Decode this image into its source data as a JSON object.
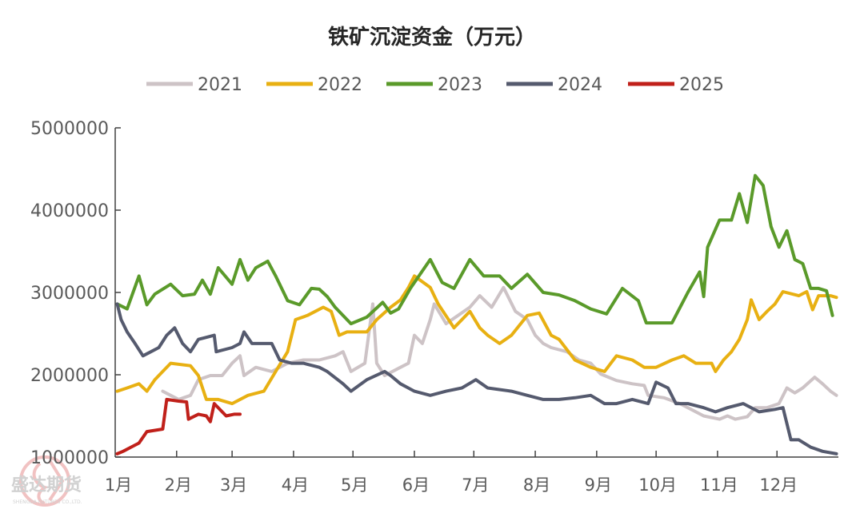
{
  "chart_data": {
    "type": "line",
    "title": "铁矿沉淀资金（万元）",
    "xlabel": "",
    "ylabel": "",
    "ylim": [
      1000000,
      5000000
    ],
    "yticks": [
      "1000000",
      "2000000",
      "3000000",
      "4000000",
      "5000000"
    ],
    "xticks": [
      "1月",
      "2月",
      "3月",
      "4月",
      "5月",
      "6月",
      "7月",
      "8月",
      "9月",
      "10月",
      "11月",
      "12月"
    ],
    "grid": false,
    "legend_position": "top",
    "series": [
      {
        "name": "2021",
        "color": "#cdc3c6",
        "points": [
          [
            "01-25",
            1800000
          ],
          [
            "01-29",
            1750000
          ],
          [
            "02-02",
            1700000
          ],
          [
            "02-08",
            1750000
          ],
          [
            "02-12",
            1940000
          ],
          [
            "02-18",
            1990000
          ],
          [
            "02-24",
            1990000
          ],
          [
            "03-01",
            2140000
          ],
          [
            "03-05",
            2230000
          ],
          [
            "03-07",
            1990000
          ],
          [
            "03-13",
            2090000
          ],
          [
            "03-21",
            2040000
          ],
          [
            "03-29",
            2140000
          ],
          [
            "04-06",
            2180000
          ],
          [
            "04-14",
            2180000
          ],
          [
            "04-22",
            2230000
          ],
          [
            "04-26",
            2280000
          ],
          [
            "04-30",
            2040000
          ],
          [
            "05-07",
            2140000
          ],
          [
            "05-11",
            2860000
          ],
          [
            "05-13",
            2140000
          ],
          [
            "05-17",
            1990000
          ],
          [
            "05-25",
            2090000
          ],
          [
            "05-29",
            2140000
          ],
          [
            "06-01",
            2480000
          ],
          [
            "06-05",
            2380000
          ],
          [
            "06-09",
            2670000
          ],
          [
            "06-11",
            2860000
          ],
          [
            "06-17",
            2620000
          ],
          [
            "06-23",
            2720000
          ],
          [
            "06-29",
            2820000
          ],
          [
            "07-04",
            2960000
          ],
          [
            "07-10",
            2820000
          ],
          [
            "07-16",
            3060000
          ],
          [
            "07-22",
            2770000
          ],
          [
            "07-28",
            2670000
          ],
          [
            "08-01",
            2480000
          ],
          [
            "08-05",
            2380000
          ],
          [
            "08-09",
            2330000
          ],
          [
            "08-17",
            2280000
          ],
          [
            "08-23",
            2180000
          ],
          [
            "08-29",
            2140000
          ],
          [
            "09-03",
            2010000
          ],
          [
            "09-11",
            1930000
          ],
          [
            "09-19",
            1890000
          ],
          [
            "09-25",
            1870000
          ],
          [
            "09-27",
            1750000
          ],
          [
            "10-05",
            1720000
          ],
          [
            "10-13",
            1650000
          ],
          [
            "10-17",
            1600000
          ],
          [
            "10-25",
            1500000
          ],
          [
            "11-02",
            1460000
          ],
          [
            "11-06",
            1500000
          ],
          [
            "11-10",
            1460000
          ],
          [
            "11-16",
            1490000
          ],
          [
            "11-20",
            1600000
          ],
          [
            "11-26",
            1600000
          ],
          [
            "12-02",
            1650000
          ],
          [
            "12-06",
            1840000
          ],
          [
            "12-10",
            1780000
          ],
          [
            "12-14",
            1840000
          ],
          [
            "12-20",
            1970000
          ],
          [
            "12-24",
            1890000
          ],
          [
            "12-28",
            1800000
          ],
          [
            "12-31",
            1750000
          ]
        ]
      },
      {
        "name": "2022",
        "color": "#e8b012",
        "points": [
          [
            "01-02",
            1800000
          ],
          [
            "01-07",
            1840000
          ],
          [
            "01-13",
            1890000
          ],
          [
            "01-17",
            1800000
          ],
          [
            "01-21",
            1940000
          ],
          [
            "01-25",
            2040000
          ],
          [
            "01-29",
            2140000
          ],
          [
            "02-08",
            2110000
          ],
          [
            "02-12",
            1990000
          ],
          [
            "02-16",
            1700000
          ],
          [
            "02-22",
            1700000
          ],
          [
            "03-01",
            1650000
          ],
          [
            "03-09",
            1750000
          ],
          [
            "03-17",
            1800000
          ],
          [
            "03-23",
            2040000
          ],
          [
            "03-29",
            2280000
          ],
          [
            "04-02",
            2670000
          ],
          [
            "04-08",
            2720000
          ],
          [
            "04-12",
            2770000
          ],
          [
            "04-16",
            2820000
          ],
          [
            "04-20",
            2770000
          ],
          [
            "04-24",
            2480000
          ],
          [
            "04-28",
            2520000
          ],
          [
            "05-08",
            2520000
          ],
          [
            "05-13",
            2670000
          ],
          [
            "05-20",
            2820000
          ],
          [
            "05-25",
            2910000
          ],
          [
            "05-29",
            3060000
          ],
          [
            "06-01",
            3200000
          ],
          [
            "06-09",
            3060000
          ],
          [
            "06-13",
            2860000
          ],
          [
            "06-21",
            2570000
          ],
          [
            "06-25",
            2670000
          ],
          [
            "06-29",
            2770000
          ],
          [
            "07-04",
            2570000
          ],
          [
            "07-08",
            2480000
          ],
          [
            "07-14",
            2380000
          ],
          [
            "07-20",
            2480000
          ],
          [
            "07-28",
            2720000
          ],
          [
            "08-03",
            2750000
          ],
          [
            "08-09",
            2480000
          ],
          [
            "08-13",
            2430000
          ],
          [
            "08-21",
            2180000
          ],
          [
            "08-29",
            2090000
          ],
          [
            "09-05",
            2040000
          ],
          [
            "09-11",
            2230000
          ],
          [
            "09-19",
            2180000
          ],
          [
            "09-25",
            2090000
          ],
          [
            "10-01",
            2090000
          ],
          [
            "10-09",
            2180000
          ],
          [
            "10-15",
            2230000
          ],
          [
            "10-21",
            2140000
          ],
          [
            "10-29",
            2140000
          ],
          [
            "10-31",
            2040000
          ],
          [
            "11-04",
            2180000
          ],
          [
            "11-08",
            2280000
          ],
          [
            "11-12",
            2430000
          ],
          [
            "11-16",
            2670000
          ],
          [
            "11-18",
            2910000
          ],
          [
            "11-22",
            2670000
          ],
          [
            "11-26",
            2770000
          ],
          [
            "11-30",
            2860000
          ],
          [
            "12-04",
            3010000
          ],
          [
            "12-12",
            2960000
          ],
          [
            "12-16",
            3010000
          ],
          [
            "12-19",
            2790000
          ],
          [
            "12-22",
            2960000
          ],
          [
            "12-28",
            2960000
          ],
          [
            "12-31",
            2940000
          ]
        ]
      },
      {
        "name": "2023",
        "color": "#5a9a2a",
        "points": [
          [
            "01-02",
            2860000
          ],
          [
            "01-07",
            2800000
          ],
          [
            "01-13",
            3200000
          ],
          [
            "01-17",
            2850000
          ],
          [
            "01-21",
            2980000
          ],
          [
            "01-29",
            3100000
          ],
          [
            "02-04",
            2960000
          ],
          [
            "02-10",
            2980000
          ],
          [
            "02-14",
            3150000
          ],
          [
            "02-18",
            2980000
          ],
          [
            "02-22",
            3300000
          ],
          [
            "03-01",
            3100000
          ],
          [
            "03-05",
            3400000
          ],
          [
            "03-09",
            3150000
          ],
          [
            "03-13",
            3300000
          ],
          [
            "03-19",
            3380000
          ],
          [
            "03-23",
            3200000
          ],
          [
            "03-29",
            2900000
          ],
          [
            "04-04",
            2850000
          ],
          [
            "04-10",
            3050000
          ],
          [
            "04-14",
            3040000
          ],
          [
            "04-18",
            2950000
          ],
          [
            "04-22",
            2820000
          ],
          [
            "04-30",
            2620000
          ],
          [
            "05-08",
            2700000
          ],
          [
            "05-16",
            2880000
          ],
          [
            "05-20",
            2750000
          ],
          [
            "05-24",
            2800000
          ],
          [
            "05-30",
            3050000
          ],
          [
            "06-09",
            3400000
          ],
          [
            "06-15",
            3120000
          ],
          [
            "06-21",
            3050000
          ],
          [
            "06-29",
            3400000
          ],
          [
            "07-06",
            3200000
          ],
          [
            "07-14",
            3200000
          ],
          [
            "07-20",
            3050000
          ],
          [
            "07-28",
            3220000
          ],
          [
            "08-05",
            3000000
          ],
          [
            "08-13",
            2970000
          ],
          [
            "08-21",
            2900000
          ],
          [
            "08-29",
            2800000
          ],
          [
            "09-06",
            2740000
          ],
          [
            "09-14",
            3050000
          ],
          [
            "09-22",
            2900000
          ],
          [
            "09-26",
            2630000
          ],
          [
            "10-01",
            2630000
          ],
          [
            "10-09",
            2630000
          ],
          [
            "10-17",
            3000000
          ],
          [
            "10-23",
            3250000
          ],
          [
            "10-25",
            2950000
          ],
          [
            "10-27",
            3550000
          ],
          [
            "11-02",
            3880000
          ],
          [
            "11-08",
            3880000
          ],
          [
            "11-12",
            4200000
          ],
          [
            "11-16",
            3850000
          ],
          [
            "11-20",
            4420000
          ],
          [
            "11-24",
            4300000
          ],
          [
            "11-28",
            3800000
          ],
          [
            "12-02",
            3550000
          ],
          [
            "12-06",
            3750000
          ],
          [
            "12-10",
            3400000
          ],
          [
            "12-14",
            3350000
          ],
          [
            "12-18",
            3050000
          ],
          [
            "12-22",
            3050000
          ],
          [
            "12-26",
            3020000
          ],
          [
            "12-29",
            2720000
          ]
        ]
      },
      {
        "name": "2024",
        "color": "#555a6e",
        "points": [
          [
            "01-02",
            2860000
          ],
          [
            "01-04",
            2670000
          ],
          [
            "01-07",
            2520000
          ],
          [
            "01-11",
            2380000
          ],
          [
            "01-15",
            2230000
          ],
          [
            "01-19",
            2280000
          ],
          [
            "01-23",
            2330000
          ],
          [
            "01-27",
            2480000
          ],
          [
            "01-31",
            2570000
          ],
          [
            "02-04",
            2380000
          ],
          [
            "02-08",
            2280000
          ],
          [
            "02-12",
            2430000
          ],
          [
            "02-20",
            2480000
          ],
          [
            "02-21",
            2280000
          ],
          [
            "03-01",
            2330000
          ],
          [
            "03-05",
            2380000
          ],
          [
            "03-07",
            2520000
          ],
          [
            "03-11",
            2380000
          ],
          [
            "03-21",
            2380000
          ],
          [
            "03-25",
            2180000
          ],
          [
            "03-31",
            2140000
          ],
          [
            "04-06",
            2140000
          ],
          [
            "04-14",
            2090000
          ],
          [
            "04-18",
            2040000
          ],
          [
            "04-26",
            1890000
          ],
          [
            "04-30",
            1800000
          ],
          [
            "05-08",
            1940000
          ],
          [
            "05-17",
            2040000
          ],
          [
            "05-20",
            1990000
          ],
          [
            "05-25",
            1890000
          ],
          [
            "06-01",
            1800000
          ],
          [
            "06-09",
            1750000
          ],
          [
            "06-17",
            1800000
          ],
          [
            "06-25",
            1840000
          ],
          [
            "07-02",
            1940000
          ],
          [
            "07-08",
            1840000
          ],
          [
            "07-20",
            1800000
          ],
          [
            "07-28",
            1750000
          ],
          [
            "08-05",
            1700000
          ],
          [
            "08-13",
            1700000
          ],
          [
            "08-21",
            1720000
          ],
          [
            "08-29",
            1750000
          ],
          [
            "09-05",
            1650000
          ],
          [
            "09-11",
            1650000
          ],
          [
            "09-19",
            1700000
          ],
          [
            "09-27",
            1650000
          ],
          [
            "10-01",
            1910000
          ],
          [
            "10-07",
            1840000
          ],
          [
            "10-11",
            1650000
          ],
          [
            "10-17",
            1650000
          ],
          [
            "10-25",
            1600000
          ],
          [
            "10-31",
            1550000
          ],
          [
            "11-06",
            1600000
          ],
          [
            "11-14",
            1650000
          ],
          [
            "11-22",
            1550000
          ],
          [
            "11-30",
            1580000
          ],
          [
            "12-04",
            1600000
          ],
          [
            "12-08",
            1210000
          ],
          [
            "12-12",
            1210000
          ],
          [
            "12-18",
            1120000
          ],
          [
            "12-24",
            1070000
          ],
          [
            "12-31",
            1040000
          ]
        ]
      },
      {
        "name": "2025",
        "color": "#c0201a",
        "points": [
          [
            "01-02",
            1040000
          ],
          [
            "01-05",
            1070000
          ],
          [
            "01-09",
            1120000
          ],
          [
            "01-13",
            1170000
          ],
          [
            "01-17",
            1310000
          ],
          [
            "01-25",
            1340000
          ],
          [
            "01-27",
            1700000
          ],
          [
            "02-02",
            1680000
          ],
          [
            "02-06",
            1670000
          ],
          [
            "02-07",
            1460000
          ],
          [
            "02-12",
            1520000
          ],
          [
            "02-16",
            1500000
          ],
          [
            "02-18",
            1430000
          ],
          [
            "02-20",
            1650000
          ],
          [
            "02-24",
            1550000
          ],
          [
            "02-26",
            1500000
          ],
          [
            "03-02",
            1520000
          ],
          [
            "03-05",
            1520000
          ]
        ]
      }
    ]
  },
  "watermark": {
    "name": "盛达期货",
    "subtitle": "SHENGDA FUTURES CO.,LTD.",
    "color": "#e8a8a8"
  }
}
